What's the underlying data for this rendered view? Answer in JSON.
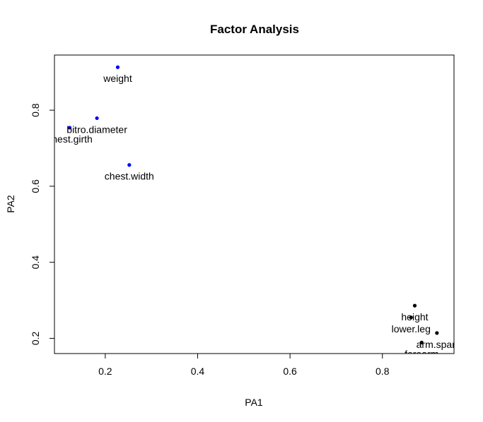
{
  "chart_data": {
    "type": "scatter",
    "title": "Factor Analysis",
    "xlabel": "PA1",
    "ylabel": "PA2",
    "xlim": [
      0.09,
      0.955
    ],
    "ylim": [
      0.16,
      0.945
    ],
    "x_ticks": [
      0.2,
      0.4,
      0.6,
      0.8
    ],
    "x_tick_labels": [
      "0.2",
      "0.4",
      "0.6",
      "0.8"
    ],
    "y_ticks": [
      0.2,
      0.4,
      0.6,
      0.8
    ],
    "y_tick_labels": [
      "0.2",
      "0.4",
      "0.6",
      "0.8"
    ],
    "grid": false,
    "legend": "none",
    "points": [
      {
        "label": "weight",
        "x": 0.227,
        "y": 0.913,
        "color": "#0000ff"
      },
      {
        "label": "bitro.diameter",
        "x": 0.182,
        "y": 0.779,
        "color": "#0000ff"
      },
      {
        "label": "chest.girth",
        "x": 0.123,
        "y": 0.754,
        "color": "#0000ff"
      },
      {
        "label": "chest.width",
        "x": 0.252,
        "y": 0.656,
        "color": "#0000ff"
      },
      {
        "label": "height",
        "x": 0.87,
        "y": 0.286,
        "color": "#000000"
      },
      {
        "label": "lower.leg",
        "x": 0.862,
        "y": 0.255,
        "color": "#000000"
      },
      {
        "label": "arm.span",
        "x": 0.918,
        "y": 0.214,
        "color": "#000000"
      },
      {
        "label": "forearm",
        "x": 0.885,
        "y": 0.189,
        "color": "#000000"
      }
    ]
  }
}
